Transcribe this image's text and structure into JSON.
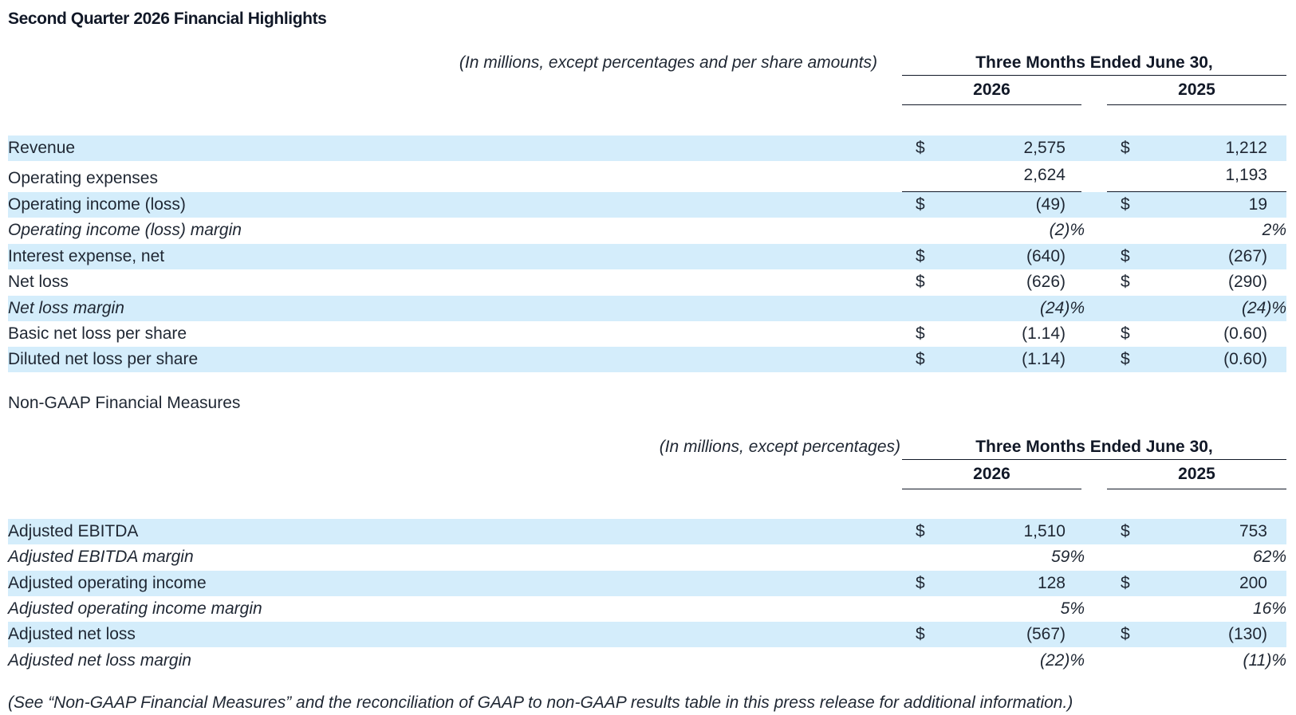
{
  "title": "Second Quarter 2026 Financial Highlights",
  "gaap": {
    "units_note": "(In millions, except percentages and per share amounts)",
    "period": "Three Months Ended June 30,",
    "years": [
      "2026",
      "2025"
    ],
    "rows": [
      {
        "label": "Revenue",
        "cur1": "$",
        "v1": "2,575",
        "cur2": "$",
        "v2": "1,212"
      },
      {
        "label": "Operating expenses",
        "cur1": "",
        "v1": "2,624",
        "cur2": "",
        "v2": "1,193"
      },
      {
        "label": "Operating income (loss)",
        "cur1": "$",
        "v1": "(49)",
        "cur2": "$",
        "v2": "19"
      },
      {
        "label": "Operating income (loss) margin",
        "cur1": "",
        "v1": "(2)%",
        "cur2": "",
        "v2": "2%"
      },
      {
        "label": "Interest expense, net",
        "cur1": "$",
        "v1": "(640)",
        "cur2": "$",
        "v2": "(267)"
      },
      {
        "label": "Net loss",
        "cur1": "$",
        "v1": "(626)",
        "cur2": "$",
        "v2": "(290)"
      },
      {
        "label": "Net loss margin",
        "cur1": "",
        "v1": "(24)%",
        "cur2": "",
        "v2": "(24)%"
      },
      {
        "label": "Basic net loss per share",
        "cur1": "$",
        "v1": "(1.14)",
        "cur2": "$",
        "v2": "(0.60)"
      },
      {
        "label": "Diluted net loss per share",
        "cur1": "$",
        "v1": "(1.14)",
        "cur2": "$",
        "v2": "(0.60)"
      }
    ]
  },
  "non_gaap": {
    "subtitle": "Non-GAAP Financial Measures",
    "units_note": "(In millions, except percentages)",
    "period": "Three Months Ended June 30,",
    "years": [
      "2026",
      "2025"
    ],
    "rows": [
      {
        "label": "Adjusted EBITDA",
        "cur1": "$",
        "v1": "1,510",
        "cur2": "$",
        "v2": "753"
      },
      {
        "label": "Adjusted EBITDA margin",
        "cur1": "",
        "v1": "59%",
        "cur2": "",
        "v2": "62%"
      },
      {
        "label": "Adjusted operating income",
        "cur1": "$",
        "v1": "128",
        "cur2": "$",
        "v2": "200"
      },
      {
        "label": "Adjusted operating income margin",
        "cur1": "",
        "v1": "5%",
        "cur2": "",
        "v2": "16%"
      },
      {
        "label": "Adjusted net loss",
        "cur1": "$",
        "v1": "(567)",
        "cur2": "$",
        "v2": "(130)"
      },
      {
        "label": "Adjusted net loss margin",
        "cur1": "",
        "v1": "(22)%",
        "cur2": "",
        "v2": "(11)%"
      }
    ]
  },
  "footnote": "(See “Non-GAAP Financial Measures” and the reconciliation of GAAP to non-GAAP results table in this press release for additional information.)"
}
